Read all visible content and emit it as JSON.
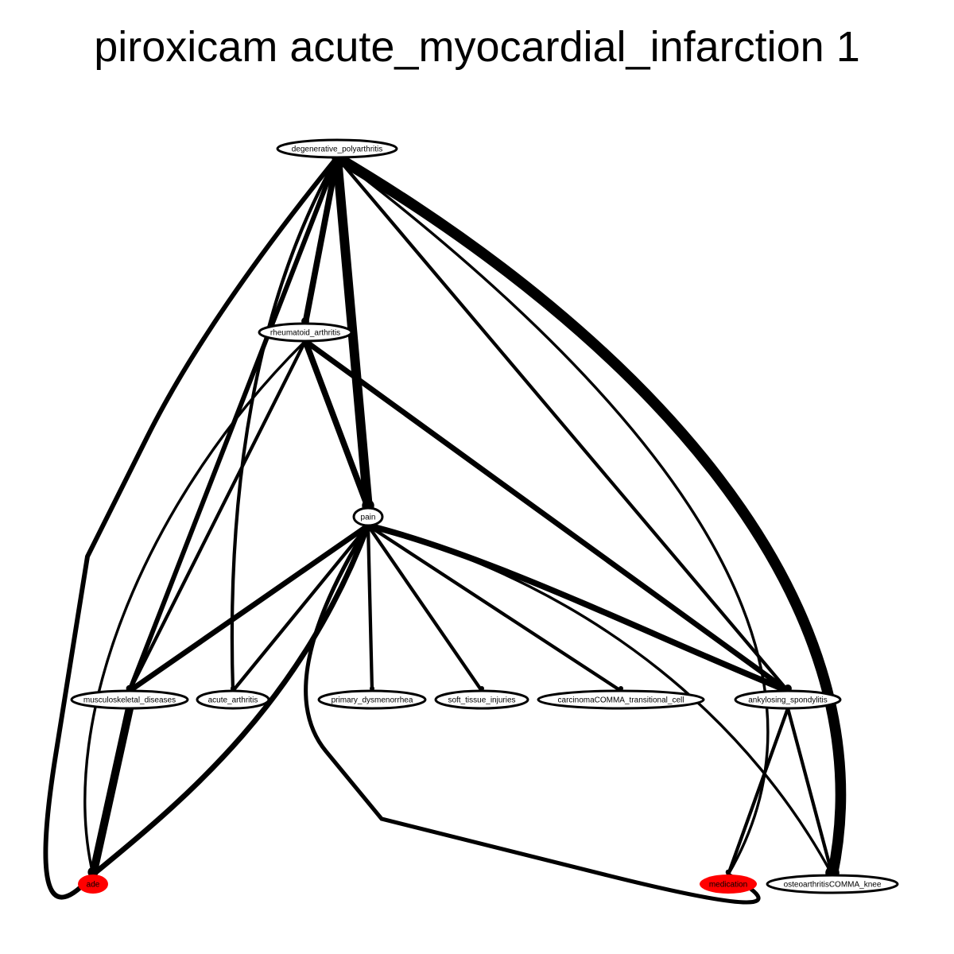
{
  "title": "piroxicam acute_myocardial_infarction 1",
  "colors": {
    "edge": "#000000",
    "node_fill": "#ffffff",
    "highlight_fill": "#ff0000"
  },
  "nodes": [
    {
      "id": "degenerative_polyarthritis",
      "label": "degenerative_polyarthritis",
      "highlight": false
    },
    {
      "id": "rheumatoid_arthritis",
      "label": "rheumatoid_arthritis",
      "highlight": false
    },
    {
      "id": "pain",
      "label": "pain",
      "highlight": false
    },
    {
      "id": "musculoskeletal_diseases",
      "label": "musculoskeletal_diseases",
      "highlight": false
    },
    {
      "id": "acute_arthritis",
      "label": "acute_arthritis",
      "highlight": false
    },
    {
      "id": "primary_dysmenorrhea",
      "label": "primary_dysmenorrhea",
      "highlight": false
    },
    {
      "id": "soft_tissue_injuries",
      "label": "soft_tissue_injuries",
      "highlight": false
    },
    {
      "id": "carcinomaCOMMA_transitional_cell",
      "label": "carcinomaCOMMA_transitional_cell",
      "highlight": false
    },
    {
      "id": "ankylosing_spondylitis",
      "label": "ankylosing_spondylitis",
      "highlight": false
    },
    {
      "id": "ade",
      "label": "ade",
      "highlight": true
    },
    {
      "id": "medication",
      "label": "medication",
      "highlight": true
    },
    {
      "id": "osteoarthritisCOMMA_knee",
      "label": "osteoarthritisCOMMA_knee",
      "highlight": false
    }
  ],
  "edges": [
    {
      "from": "degenerative_polyarthritis",
      "to": "rheumatoid_arthritis",
      "weight": 9
    },
    {
      "from": "degenerative_polyarthritis",
      "to": "pain",
      "weight": 14
    },
    {
      "from": "degenerative_polyarthritis",
      "to": "musculoskeletal_diseases",
      "weight": 7
    },
    {
      "from": "degenerative_polyarthritis",
      "to": "acute_arthritis",
      "weight": 5
    },
    {
      "from": "degenerative_polyarthritis",
      "to": "ade",
      "weight": 7
    },
    {
      "from": "degenerative_polyarthritis",
      "to": "ankylosing_spondylitis",
      "weight": 5
    },
    {
      "from": "degenerative_polyarthritis",
      "to": "medication",
      "weight": 4
    },
    {
      "from": "degenerative_polyarthritis",
      "to": "osteoarthritisCOMMA_knee",
      "weight": 16
    },
    {
      "from": "rheumatoid_arthritis",
      "to": "pain",
      "weight": 9
    },
    {
      "from": "rheumatoid_arthritis",
      "to": "musculoskeletal_diseases",
      "weight": 5
    },
    {
      "from": "rheumatoid_arthritis",
      "to": "ankylosing_spondylitis",
      "weight": 8
    },
    {
      "from": "rheumatoid_arthritis",
      "to": "ade",
      "weight": 4
    },
    {
      "from": "pain",
      "to": "musculoskeletal_diseases",
      "weight": 8
    },
    {
      "from": "pain",
      "to": "acute_arthritis",
      "weight": 5
    },
    {
      "from": "pain",
      "to": "primary_dysmenorrhea",
      "weight": 5
    },
    {
      "from": "pain",
      "to": "soft_tissue_injuries",
      "weight": 5
    },
    {
      "from": "pain",
      "to": "carcinomaCOMMA_transitional_cell",
      "weight": 5
    },
    {
      "from": "pain",
      "to": "ankylosing_spondylitis",
      "weight": 9
    },
    {
      "from": "pain",
      "to": "ade",
      "weight": 8
    },
    {
      "from": "pain",
      "to": "medication",
      "weight": 6
    },
    {
      "from": "pain",
      "to": "osteoarthritisCOMMA_knee",
      "weight": 4
    },
    {
      "from": "musculoskeletal_diseases",
      "to": "ade",
      "weight": 12
    },
    {
      "from": "ankylosing_spondylitis",
      "to": "medication",
      "weight": 5
    },
    {
      "from": "ankylosing_spondylitis",
      "to": "osteoarthritisCOMMA_knee",
      "weight": 5
    }
  ]
}
